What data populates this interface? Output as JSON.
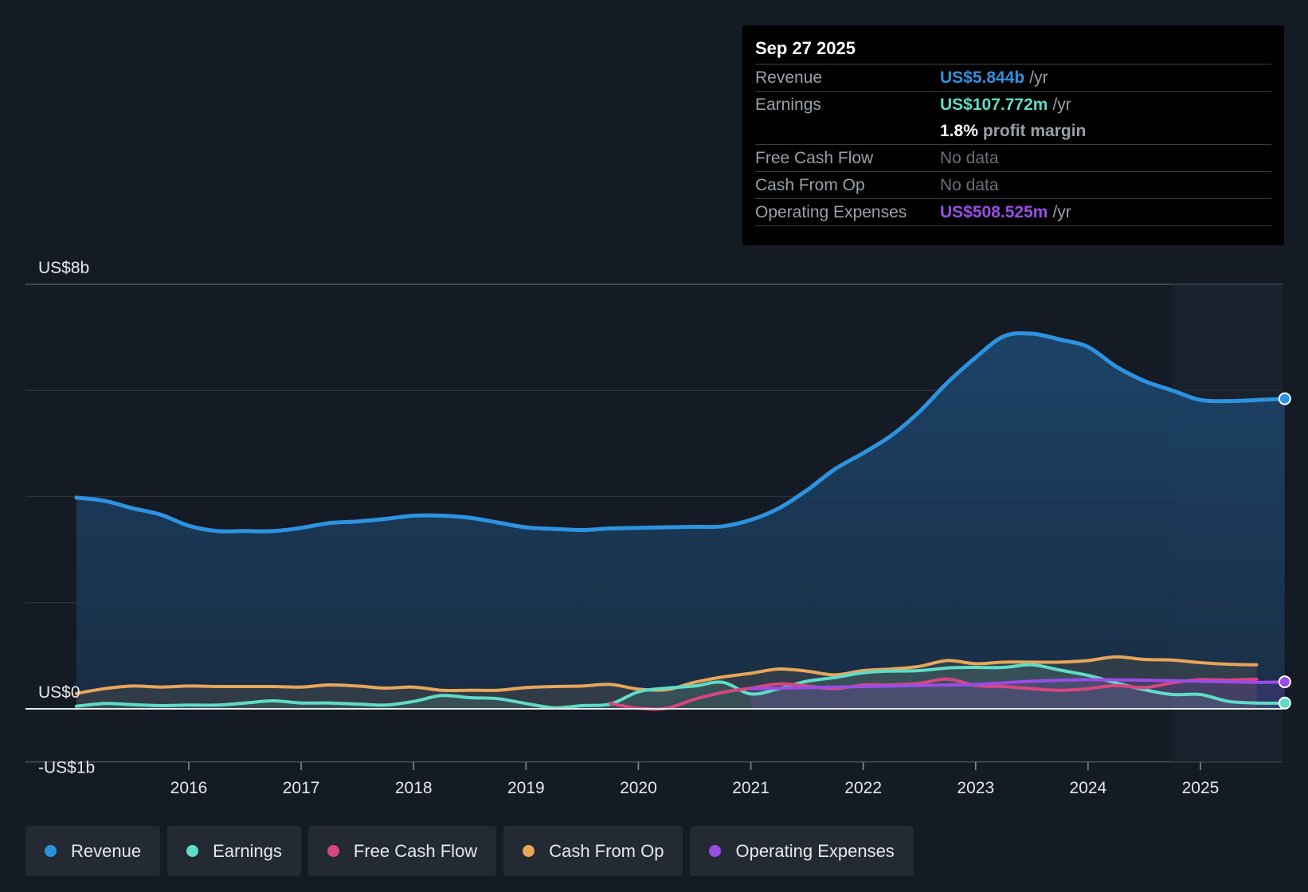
{
  "tooltip": {
    "date": "Sep 27 2025",
    "revenue_label": "Revenue",
    "revenue_value": "US$5.844b",
    "earnings_label": "Earnings",
    "earnings_value": "US$107.772m",
    "margin_value": "1.8%",
    "margin_label": "profit margin",
    "fcf_label": "Free Cash Flow",
    "fcf_value": "No data",
    "cfo_label": "Cash From Op",
    "cfo_value": "No data",
    "opex_label": "Operating Expenses",
    "opex_value": "US$508.525m",
    "unit": "/yr"
  },
  "colors": {
    "revenue": "#2d93e0",
    "earnings": "#5fdcc8",
    "fcf": "#d9467f",
    "cfo": "#e8a65a",
    "opex": "#9a4de6"
  },
  "legend": [
    {
      "key": "revenue",
      "label": "Revenue"
    },
    {
      "key": "earnings",
      "label": "Earnings"
    },
    {
      "key": "fcf",
      "label": "Free Cash Flow"
    },
    {
      "key": "cfo",
      "label": "Cash From Op"
    },
    {
      "key": "opex",
      "label": "Operating Expenses"
    }
  ],
  "chart_data": {
    "type": "area",
    "title": "",
    "xlabel": "",
    "ylabel": "",
    "y_axis_labels": [
      "US$8b",
      "US$0",
      "-US$1b"
    ],
    "ylim": [
      -1,
      8
    ],
    "xlim": [
      2015.0,
      2025.75
    ],
    "x_ticks": [
      2016,
      2017,
      2018,
      2019,
      2020,
      2021,
      2022,
      2023,
      2024,
      2025
    ],
    "gridlines": [
      8,
      6,
      4,
      2,
      0,
      -1
    ],
    "forecast_shade_start": 2024.75,
    "series": [
      {
        "key": "revenue",
        "name": "Revenue",
        "filled": true,
        "end_marker": true,
        "x": [
          2015.0,
          2015.25,
          2015.5,
          2015.75,
          2016.0,
          2016.25,
          2016.5,
          2016.75,
          2017.0,
          2017.25,
          2017.5,
          2017.75,
          2018.0,
          2018.25,
          2018.5,
          2018.75,
          2019.0,
          2019.25,
          2019.5,
          2019.75,
          2020.0,
          2020.25,
          2020.5,
          2020.75,
          2021.0,
          2021.25,
          2021.5,
          2021.75,
          2022.0,
          2022.25,
          2022.5,
          2022.75,
          2023.0,
          2023.25,
          2023.5,
          2023.75,
          2024.0,
          2024.25,
          2024.5,
          2024.75,
          2025.0,
          2025.25,
          2025.5,
          2025.75
        ],
        "y": [
          3.98,
          3.92,
          3.78,
          3.66,
          3.45,
          3.35,
          3.35,
          3.35,
          3.41,
          3.5,
          3.53,
          3.58,
          3.64,
          3.64,
          3.6,
          3.51,
          3.42,
          3.39,
          3.37,
          3.4,
          3.41,
          3.42,
          3.43,
          3.44,
          3.56,
          3.78,
          4.12,
          4.52,
          4.82,
          5.15,
          5.6,
          6.15,
          6.62,
          7.02,
          7.07,
          6.96,
          6.82,
          6.45,
          6.18,
          6.0,
          5.82,
          5.8,
          5.82,
          5.844
        ]
      },
      {
        "key": "cfo",
        "name": "Cash From Op",
        "filled": true,
        "end_marker": false,
        "x": [
          2015.0,
          2015.25,
          2015.5,
          2015.75,
          2016.0,
          2016.25,
          2016.5,
          2016.75,
          2017.0,
          2017.25,
          2017.5,
          2017.75,
          2018.0,
          2018.25,
          2018.5,
          2018.75,
          2019.0,
          2019.25,
          2019.5,
          2019.75,
          2020.0,
          2020.25,
          2020.5,
          2020.75,
          2021.0,
          2021.25,
          2021.5,
          2021.75,
          2022.0,
          2022.25,
          2022.5,
          2022.75,
          2023.0,
          2023.25,
          2023.5,
          2023.75,
          2024.0,
          2024.25,
          2024.5,
          2024.75,
          2025.0,
          2025.25,
          2025.5
        ],
        "y": [
          0.29,
          0.38,
          0.43,
          0.41,
          0.43,
          0.42,
          0.42,
          0.42,
          0.41,
          0.45,
          0.43,
          0.39,
          0.41,
          0.35,
          0.35,
          0.35,
          0.4,
          0.42,
          0.43,
          0.46,
          0.37,
          0.36,
          0.5,
          0.6,
          0.67,
          0.75,
          0.71,
          0.64,
          0.72,
          0.75,
          0.8,
          0.91,
          0.85,
          0.88,
          0.88,
          0.88,
          0.91,
          0.98,
          0.93,
          0.92,
          0.87,
          0.84,
          0.83
        ]
      },
      {
        "key": "earnings",
        "name": "Earnings",
        "filled": true,
        "end_marker": true,
        "x": [
          2015.0,
          2015.25,
          2015.5,
          2015.75,
          2016.0,
          2016.25,
          2016.5,
          2016.75,
          2017.0,
          2017.25,
          2017.5,
          2017.75,
          2018.0,
          2018.25,
          2018.5,
          2018.75,
          2019.0,
          2019.25,
          2019.5,
          2019.75,
          2020.0,
          2020.25,
          2020.5,
          2020.75,
          2021.0,
          2021.25,
          2021.5,
          2021.75,
          2022.0,
          2022.25,
          2022.5,
          2022.75,
          2023.0,
          2023.25,
          2023.5,
          2023.75,
          2024.0,
          2024.25,
          2024.5,
          2024.75,
          2025.0,
          2025.25,
          2025.5,
          2025.75
        ],
        "y": [
          0.05,
          0.1,
          0.08,
          0.06,
          0.07,
          0.07,
          0.11,
          0.15,
          0.11,
          0.11,
          0.09,
          0.07,
          0.14,
          0.25,
          0.21,
          0.19,
          0.1,
          0.02,
          0.06,
          0.09,
          0.32,
          0.39,
          0.43,
          0.5,
          0.28,
          0.38,
          0.52,
          0.59,
          0.68,
          0.71,
          0.72,
          0.77,
          0.78,
          0.78,
          0.83,
          0.73,
          0.63,
          0.49,
          0.36,
          0.27,
          0.27,
          0.14,
          0.11,
          0.108
        ]
      },
      {
        "key": "fcf",
        "name": "Free Cash Flow",
        "filled": false,
        "end_marker": false,
        "x": [
          2019.75,
          2020.0,
          2020.25,
          2020.5,
          2020.75,
          2021.0,
          2021.25,
          2021.5,
          2021.75,
          2022.0,
          2022.25,
          2022.5,
          2022.75,
          2023.0,
          2023.25,
          2023.5,
          2023.75,
          2024.0,
          2024.25,
          2024.5,
          2024.75,
          2025.0,
          2025.25,
          2025.5
        ],
        "y": [
          0.1,
          0.01,
          0.01,
          0.18,
          0.31,
          0.39,
          0.47,
          0.43,
          0.38,
          0.45,
          0.45,
          0.48,
          0.56,
          0.44,
          0.42,
          0.38,
          0.35,
          0.38,
          0.44,
          0.4,
          0.49,
          0.55,
          0.54,
          0.56
        ]
      },
      {
        "key": "opex",
        "name": "Operating Expenses",
        "filled": true,
        "end_marker": true,
        "x": [
          2021.0,
          2021.5,
          2022.0,
          2022.5,
          2023.0,
          2023.5,
          2024.0,
          2024.5,
          2025.0,
          2025.5,
          2025.75
        ],
        "y": [
          0.38,
          0.4,
          0.42,
          0.44,
          0.46,
          0.52,
          0.55,
          0.54,
          0.52,
          0.5,
          0.509
        ]
      }
    ]
  }
}
